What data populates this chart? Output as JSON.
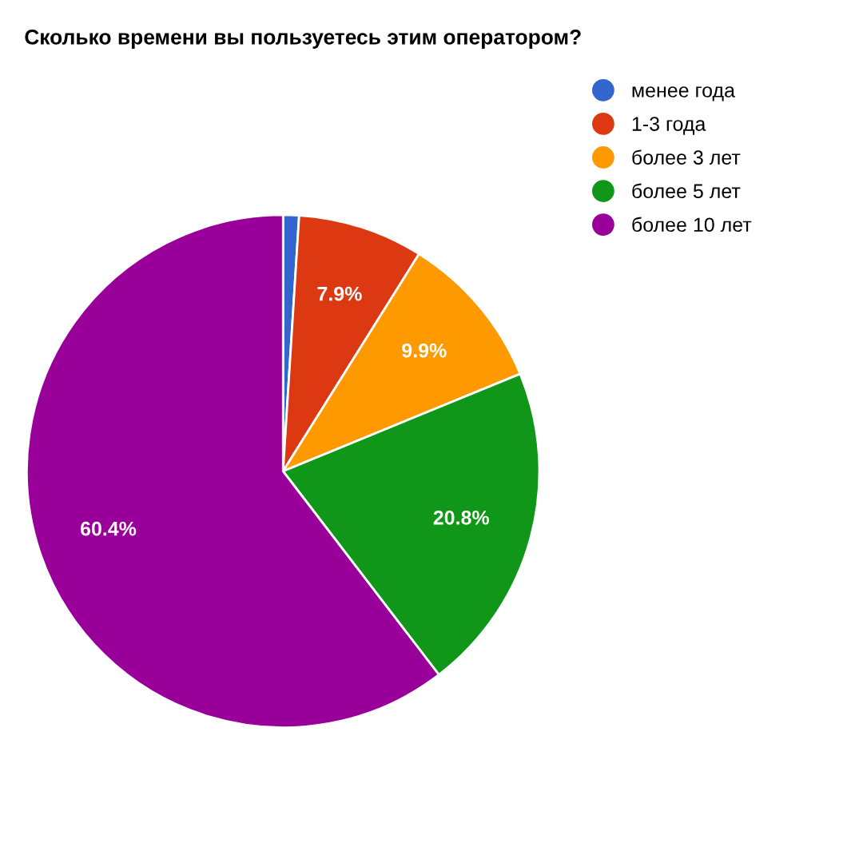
{
  "chart_data": {
    "type": "pie",
    "title": "Сколько времени вы пользуетесь этим оператором?",
    "categories": [
      "менее года",
      "1-3 года",
      "более 3 лет",
      "более 5 лет",
      "более 10 лет"
    ],
    "values": [
      1.0,
      7.9,
      9.9,
      20.8,
      60.4
    ],
    "value_labels": [
      null,
      "7.9%",
      "9.9%",
      "20.8%",
      "60.4%"
    ],
    "colors": [
      "#3366cc",
      "#dc3912",
      "#ff9900",
      "#109618",
      "#990099"
    ],
    "legend": "top right"
  }
}
